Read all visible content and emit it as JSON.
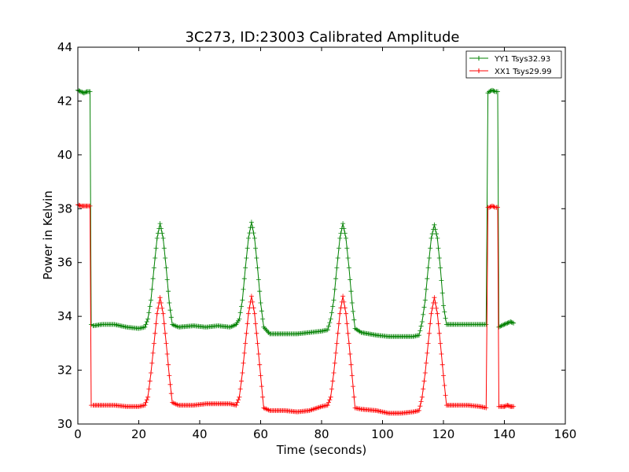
{
  "chart_data": {
    "type": "line",
    "title": "3C273, ID:23003 Calibrated Amplitude",
    "xlabel": "Time (seconds)",
    "ylabel": "Power in Kelvin",
    "xlim": [
      0,
      160
    ],
    "ylim": [
      30,
      44
    ],
    "xticks": [
      0,
      20,
      40,
      60,
      80,
      100,
      120,
      140,
      160
    ],
    "yticks": [
      30,
      32,
      34,
      36,
      38,
      40,
      42,
      44
    ],
    "grid": false,
    "legend_position": "top-right",
    "marker": "+",
    "series": [
      {
        "name": "YY1 Tsys32.93",
        "color": "#008000",
        "points": [
          [
            0,
            42.4
          ],
          [
            1,
            42.35
          ],
          [
            2,
            42.3
          ],
          [
            3,
            42.35
          ],
          [
            4,
            42.35
          ],
          [
            4.4,
            33.7
          ],
          [
            5,
            33.65
          ],
          [
            8,
            33.7
          ],
          [
            12,
            33.7
          ],
          [
            16,
            33.6
          ],
          [
            20,
            33.55
          ],
          [
            22,
            33.6
          ],
          [
            23,
            33.9
          ],
          [
            24,
            34.6
          ],
          [
            25,
            35.8
          ],
          [
            26,
            36.9
          ],
          [
            27,
            37.45
          ],
          [
            28,
            36.9
          ],
          [
            29,
            35.8
          ],
          [
            30,
            34.5
          ],
          [
            31,
            33.7
          ],
          [
            33,
            33.6
          ],
          [
            38,
            33.65
          ],
          [
            42,
            33.6
          ],
          [
            46,
            33.65
          ],
          [
            50,
            33.6
          ],
          [
            52,
            33.7
          ],
          [
            53,
            33.9
          ],
          [
            54,
            34.6
          ],
          [
            55,
            35.8
          ],
          [
            56,
            36.9
          ],
          [
            57,
            37.5
          ],
          [
            58,
            36.9
          ],
          [
            59,
            35.8
          ],
          [
            60,
            34.5
          ],
          [
            61,
            33.6
          ],
          [
            63,
            33.35
          ],
          [
            68,
            33.35
          ],
          [
            72,
            33.35
          ],
          [
            76,
            33.4
          ],
          [
            80,
            33.45
          ],
          [
            82,
            33.5
          ],
          [
            83,
            33.9
          ],
          [
            84,
            34.6
          ],
          [
            85,
            35.8
          ],
          [
            86,
            36.9
          ],
          [
            87,
            37.45
          ],
          [
            88,
            36.9
          ],
          [
            89,
            35.8
          ],
          [
            90,
            34.5
          ],
          [
            91,
            33.55
          ],
          [
            93,
            33.4
          ],
          [
            98,
            33.3
          ],
          [
            102,
            33.25
          ],
          [
            106,
            33.25
          ],
          [
            110,
            33.25
          ],
          [
            112,
            33.3
          ],
          [
            113,
            33.8
          ],
          [
            114,
            34.6
          ],
          [
            115,
            35.8
          ],
          [
            116,
            36.9
          ],
          [
            117,
            37.4
          ],
          [
            118,
            36.9
          ],
          [
            119,
            35.8
          ],
          [
            120,
            34.4
          ],
          [
            121,
            33.7
          ],
          [
            124,
            33.7
          ],
          [
            128,
            33.7
          ],
          [
            132,
            33.7
          ],
          [
            134,
            33.7
          ],
          [
            134.6,
            42.3
          ],
          [
            135,
            42.35
          ],
          [
            136,
            42.4
          ],
          [
            137,
            42.35
          ],
          [
            137.8,
            42.35
          ],
          [
            138.2,
            33.6
          ],
          [
            139,
            33.65
          ],
          [
            140,
            33.7
          ],
          [
            141,
            33.75
          ],
          [
            142,
            33.8
          ],
          [
            143,
            33.75
          ]
        ]
      },
      {
        "name": "XX1 Tsys29.99",
        "color": "#ff0000",
        "points": [
          [
            0,
            38.15
          ],
          [
            1,
            38.1
          ],
          [
            2,
            38.1
          ],
          [
            3,
            38.1
          ],
          [
            4,
            38.1
          ],
          [
            4.4,
            30.7
          ],
          [
            5,
            30.7
          ],
          [
            8,
            30.7
          ],
          [
            12,
            30.7
          ],
          [
            16,
            30.65
          ],
          [
            20,
            30.65
          ],
          [
            22,
            30.7
          ],
          [
            23,
            31.0
          ],
          [
            24,
            31.9
          ],
          [
            25,
            33.0
          ],
          [
            26,
            34.1
          ],
          [
            27,
            34.7
          ],
          [
            28,
            34.1
          ],
          [
            29,
            33.0
          ],
          [
            30,
            31.8
          ],
          [
            31,
            30.8
          ],
          [
            33,
            30.7
          ],
          [
            38,
            30.7
          ],
          [
            42,
            30.75
          ],
          [
            46,
            30.75
          ],
          [
            50,
            30.75
          ],
          [
            52,
            30.7
          ],
          [
            53,
            31.0
          ],
          [
            54,
            31.9
          ],
          [
            55,
            33.0
          ],
          [
            56,
            34.1
          ],
          [
            57,
            34.75
          ],
          [
            58,
            34.1
          ],
          [
            59,
            33.0
          ],
          [
            60,
            31.8
          ],
          [
            61,
            30.6
          ],
          [
            63,
            30.5
          ],
          [
            68,
            30.5
          ],
          [
            72,
            30.45
          ],
          [
            76,
            30.5
          ],
          [
            80,
            30.65
          ],
          [
            82,
            30.7
          ],
          [
            83,
            31.0
          ],
          [
            84,
            31.9
          ],
          [
            85,
            33.0
          ],
          [
            86,
            34.1
          ],
          [
            87,
            34.75
          ],
          [
            88,
            34.1
          ],
          [
            89,
            33.0
          ],
          [
            90,
            31.8
          ],
          [
            91,
            30.6
          ],
          [
            93,
            30.55
          ],
          [
            98,
            30.5
          ],
          [
            102,
            30.4
          ],
          [
            106,
            30.4
          ],
          [
            110,
            30.45
          ],
          [
            112,
            30.5
          ],
          [
            113,
            31.0
          ],
          [
            114,
            31.9
          ],
          [
            115,
            33.0
          ],
          [
            116,
            34.1
          ],
          [
            117,
            34.7
          ],
          [
            118,
            34.1
          ],
          [
            119,
            33.0
          ],
          [
            120,
            31.8
          ],
          [
            121,
            30.7
          ],
          [
            124,
            30.7
          ],
          [
            128,
            30.7
          ],
          [
            132,
            30.65
          ],
          [
            134,
            30.6
          ],
          [
            134.6,
            38.05
          ],
          [
            135,
            38.05
          ],
          [
            136,
            38.1
          ],
          [
            137,
            38.05
          ],
          [
            137.8,
            38.05
          ],
          [
            138.2,
            30.65
          ],
          [
            139,
            30.65
          ],
          [
            140,
            30.65
          ],
          [
            141,
            30.7
          ],
          [
            142,
            30.65
          ],
          [
            143,
            30.65
          ]
        ]
      }
    ]
  }
}
